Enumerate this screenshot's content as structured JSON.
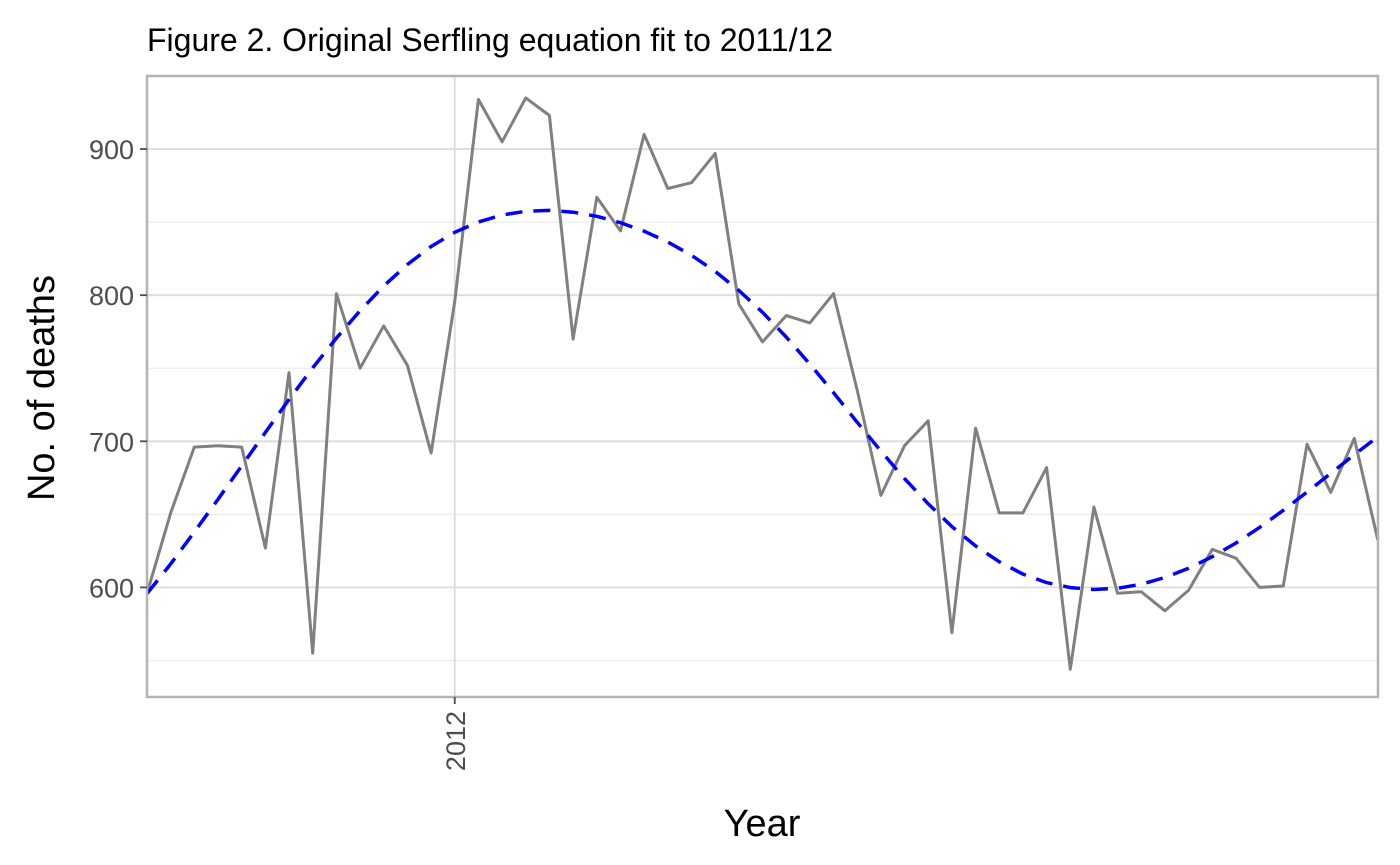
{
  "chart_data": {
    "type": "line",
    "title": "Figure 2. Original Serfling equation fit to 2011/12",
    "xlabel": "Year",
    "ylabel": "No. of deaths",
    "x_tick_labels": [
      {
        "label": "2012",
        "x": 13
      }
    ],
    "y_ticks": [
      600,
      700,
      800,
      900
    ],
    "x_range": [
      0,
      52
    ],
    "ylim": [
      525,
      950
    ],
    "grid": true,
    "legend": "none",
    "series": [
      {
        "color": "#808080",
        "style": "solid",
        "values": [
          596,
          651,
          696,
          697,
          696,
          627,
          747,
          555,
          801,
          750,
          779,
          752,
          692,
          796,
          934,
          905,
          935,
          923,
          770,
          867,
          844,
          910,
          873,
          877,
          897,
          794,
          768,
          786,
          781,
          801,
          735,
          663,
          697,
          714,
          569,
          709,
          651,
          651,
          682,
          544,
          655,
          596,
          597,
          584,
          598,
          626,
          620,
          600,
          601,
          698,
          665,
          702,
          632
        ]
      },
      {
        "color": "#0000ff",
        "style": "dashed",
        "values": [
          595.7,
          616.1,
          637.9,
          660.3,
          683.2,
          706.1,
          728.6,
          750.2,
          770.6,
          789.4,
          806.3,
          821.0,
          833.3,
          843.0,
          850.1,
          854.9,
          857.4,
          858.0,
          856.8,
          854.0,
          849.6,
          843.8,
          836.4,
          827.3,
          816.3,
          803.3,
          788.3,
          771.4,
          752.8,
          733.3,
          713.0,
          693.3,
          674.5,
          657.2,
          641.6,
          628.4,
          617.6,
          609.1,
          603.3,
          599.9,
          598.6,
          599.4,
          602.2,
          606.8,
          613.1,
          621.0,
          630.4,
          641.1,
          652.8,
          665.2,
          678.0,
          690.8,
          703.2
        ]
      }
    ]
  }
}
